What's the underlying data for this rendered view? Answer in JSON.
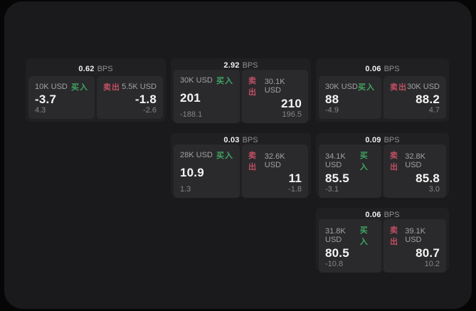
{
  "labels": {
    "bps_unit": "BPS",
    "buy": "买入",
    "sell": "卖出"
  },
  "colors": {
    "window_bg": "#1a1a1c",
    "card_bg": "#202022",
    "tile_bg": "#2a2a2c",
    "buy_green": "#41a564",
    "sell_red": "#c14f63",
    "price_white": "#f5f5f5",
    "muted_gray": "#85858a"
  },
  "cards": [
    {
      "bps": "0.62",
      "buy": {
        "size": "10K USD",
        "price": "-3.7",
        "delta": "4.3"
      },
      "sell": {
        "size": "5.5K USD",
        "price": "-1.8",
        "delta": "-2.6"
      }
    },
    {
      "bps": "2.92",
      "buy": {
        "size": "30K USD",
        "price": "201",
        "delta": "-188.1"
      },
      "sell": {
        "size": "30.1K USD",
        "price": "210",
        "delta": "196.5"
      }
    },
    {
      "bps": "0.06",
      "buy": {
        "size": "30K USD",
        "price": "88",
        "delta": "-4.9"
      },
      "sell": {
        "size": "30K USD",
        "price": "88.2",
        "delta": "4.7"
      }
    },
    {
      "bps": "0.03",
      "buy": {
        "size": "28K USD",
        "price": "10.9",
        "delta": "1.3"
      },
      "sell": {
        "size": "32.6K USD",
        "price": "11",
        "delta": "-1.8"
      }
    },
    {
      "bps": "0.09",
      "buy": {
        "size": "34.1K USD",
        "price": "85.5",
        "delta": "-3.1"
      },
      "sell": {
        "size": "32.8K USD",
        "price": "85.8",
        "delta": "3.0"
      }
    },
    {
      "bps": "0.06",
      "buy": {
        "size": "31.8K USD",
        "price": "80.5",
        "delta": "-10.8"
      },
      "sell": {
        "size": "39.1K USD",
        "price": "80.7",
        "delta": "10.2"
      }
    }
  ]
}
